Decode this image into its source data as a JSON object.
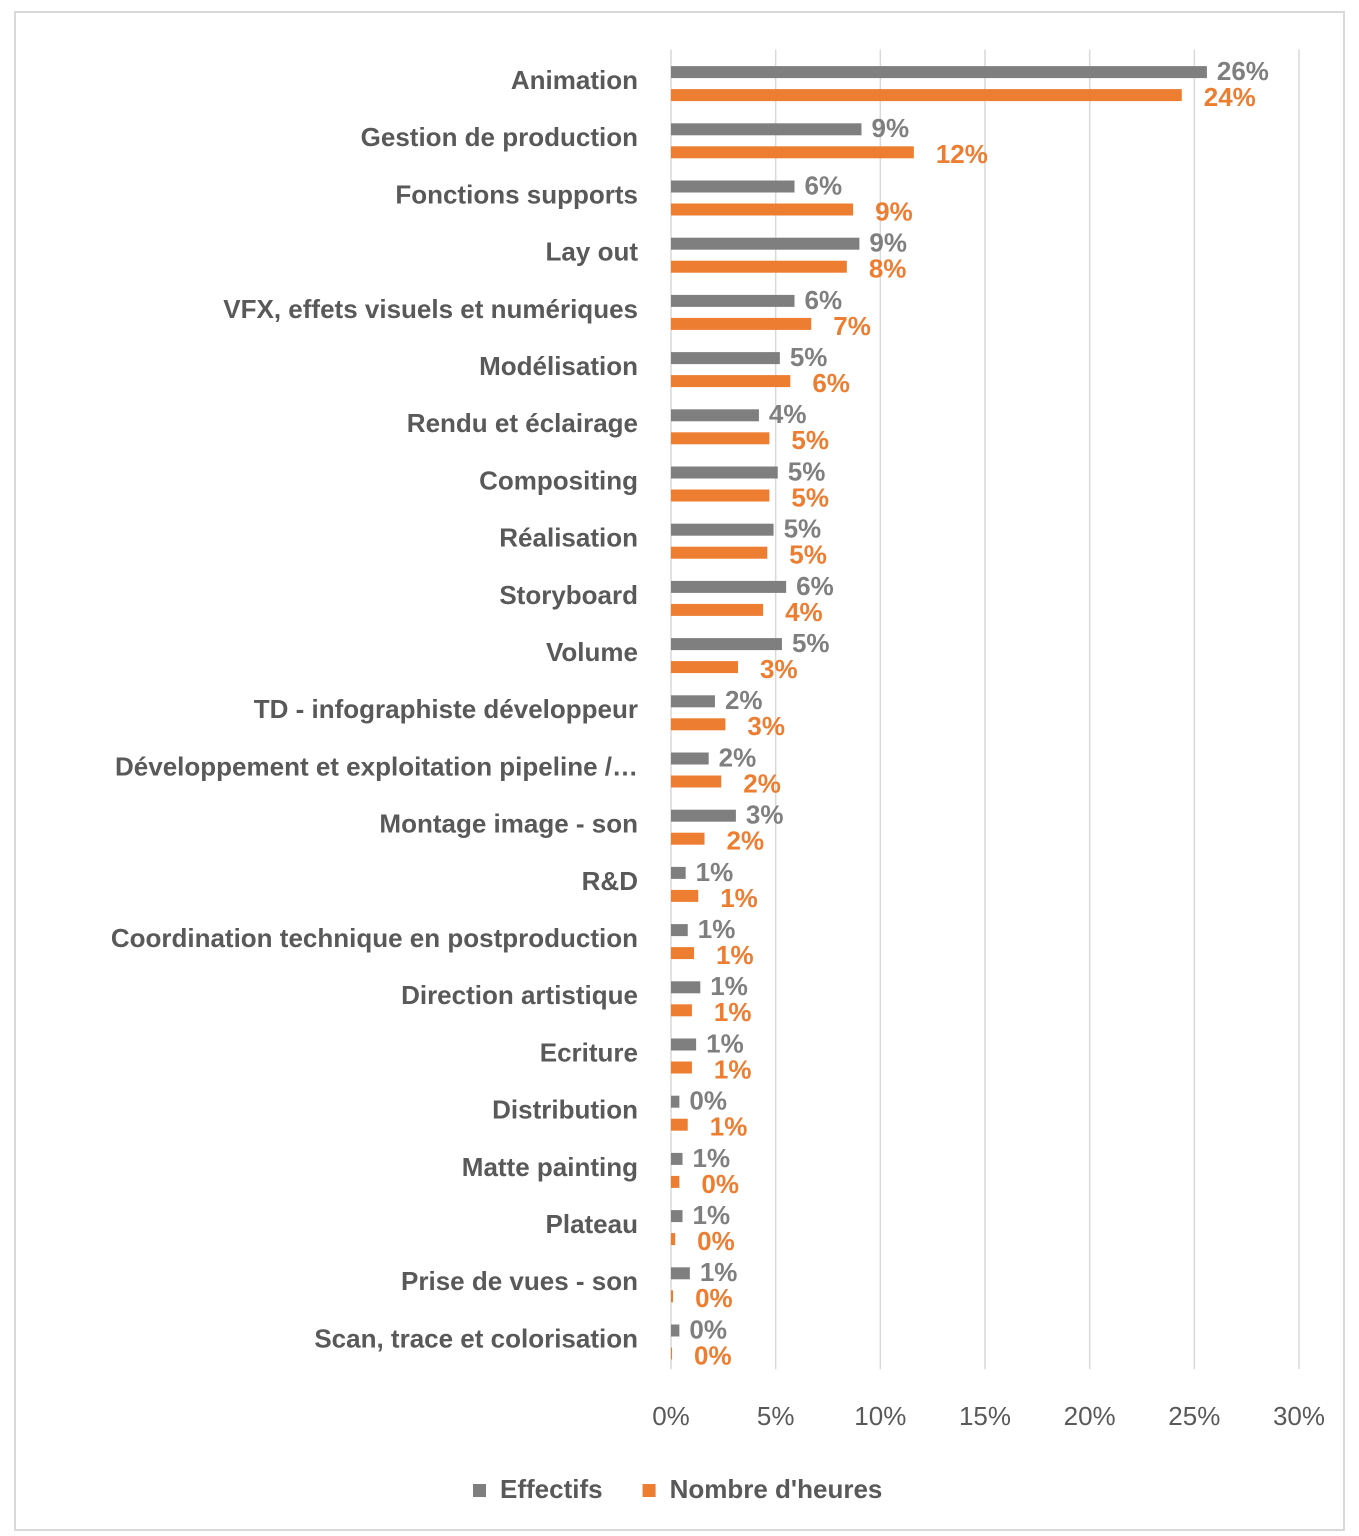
{
  "chart_data": {
    "type": "hbar",
    "categories": [
      "Animation",
      "Gestion de production",
      "Fonctions supports",
      "Lay out",
      "VFX, effets visuels et numériques",
      "Modélisation",
      "Rendu et éclairage",
      "Compositing",
      "Réalisation",
      "Storyboard",
      "Volume",
      "TD - infographiste développeur",
      "Développement et exploitation pipeline /…",
      "Montage image - son",
      "R&D",
      "Coordination technique en postproduction",
      "Direction artistique",
      "Ecriture",
      "Distribution",
      "Matte painting",
      "Plateau",
      "Prise de vues - son",
      "Scan, trace et colorisation"
    ],
    "series": [
      {
        "name": "Effectifs",
        "color": "#7f7f7f",
        "values": [
          25.6,
          9.1,
          5.9,
          9.0,
          5.9,
          5.2,
          4.2,
          5.1,
          4.9,
          5.5,
          5.3,
          2.1,
          1.8,
          3.1,
          0.7,
          0.8,
          1.4,
          1.2,
          0.4,
          0.55,
          0.55,
          0.9,
          0.4
        ],
        "value_labels": [
          "26%",
          "9%",
          "6%",
          "9%",
          "6%",
          "5%",
          "4%",
          "5%",
          "5%",
          "6%",
          "5%",
          "2%",
          "2%",
          "3%",
          "1%",
          "1%",
          "1%",
          "1%",
          "0%",
          "1%",
          "1%",
          "1%",
          "0%"
        ]
      },
      {
        "name": "Nombre d'heures",
        "color": "#ed7d31",
        "values": [
          24.4,
          11.6,
          8.7,
          8.4,
          6.7,
          5.7,
          4.7,
          4.7,
          4.6,
          4.4,
          3.2,
          2.6,
          2.4,
          1.6,
          1.3,
          1.1,
          1.0,
          1.0,
          0.8,
          0.4,
          0.2,
          0.1,
          0.05
        ],
        "value_labels": [
          "24%",
          "12%",
          "9%",
          "8%",
          "7%",
          "6%",
          "5%",
          "5%",
          "5%",
          "4%",
          "3%",
          "3%",
          "2%",
          "2%",
          "1%",
          "1%",
          "1%",
          "1%",
          "1%",
          "0%",
          "0%",
          "0%",
          "0%"
        ]
      }
    ],
    "xlim": [
      0,
      30
    ],
    "xticks": [
      {
        "value": 0,
        "label": "0%"
      },
      {
        "value": 5,
        "label": "5%"
      },
      {
        "value": 10,
        "label": "10%"
      },
      {
        "value": 15,
        "label": "15%"
      },
      {
        "value": 20,
        "label": "20%"
      },
      {
        "value": 25,
        "label": "25%"
      },
      {
        "value": 30,
        "label": "30%"
      }
    ],
    "grid": true,
    "legend": "bottom"
  }
}
